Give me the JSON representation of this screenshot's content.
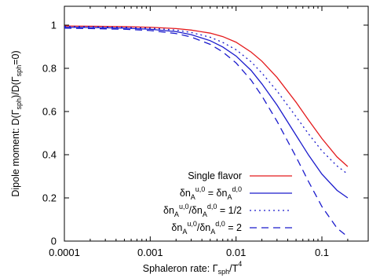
{
  "chart_data": {
    "type": "line",
    "xlabel": "Sphaleron rate: Γsph/T4",
    "ylabel": "Dipole moment: D(Γsph)/D(Γsph=0)",
    "xscale": "log",
    "xlim": [
      0.0001,
      0.2
    ],
    "ylim": [
      0,
      1.05
    ],
    "x_ticks": [
      0.0001,
      0.001,
      0.01,
      0.1
    ],
    "x_tick_labels": [
      "0.0001",
      "0.001",
      "0.01",
      "0.1"
    ],
    "y_ticks": [
      0,
      0.2,
      0.4,
      0.6,
      0.8,
      1
    ],
    "y_tick_labels": [
      "0",
      "0.2",
      "0.4",
      "0.6",
      "0.8",
      "1"
    ],
    "grid": false,
    "legend_position": "bottom-left",
    "series": [
      {
        "name": "Single flavor",
        "color": "#e41a1c",
        "dash": "solid",
        "x": [
          0.0001,
          0.0002,
          0.0005,
          0.001,
          0.002,
          0.003,
          0.005,
          0.007,
          0.01,
          0.015,
          0.02,
          0.03,
          0.05,
          0.07,
          0.1,
          0.15,
          0.2
        ],
        "y": [
          0.996,
          0.995,
          0.993,
          0.99,
          0.984,
          0.977,
          0.963,
          0.947,
          0.921,
          0.875,
          0.833,
          0.758,
          0.643,
          0.56,
          0.475,
          0.39,
          0.345
        ]
      },
      {
        "name": "δnAu,0 = δnAd,0",
        "color": "#1a1acc",
        "dash": "solid",
        "x": [
          0.0001,
          0.0002,
          0.0005,
          0.001,
          0.002,
          0.003,
          0.005,
          0.007,
          0.01,
          0.015,
          0.02,
          0.03,
          0.05,
          0.07,
          0.1,
          0.15,
          0.2
        ],
        "y": [
          0.99,
          0.989,
          0.986,
          0.981,
          0.97,
          0.956,
          0.928,
          0.899,
          0.857,
          0.79,
          0.728,
          0.63,
          0.49,
          0.398,
          0.31,
          0.235,
          0.2
        ]
      },
      {
        "name": "δnAu,0/δnAd,0 = 1/2",
        "color": "#1a1acc",
        "dash": "dotted",
        "x": [
          0.0001,
          0.0002,
          0.0005,
          0.001,
          0.002,
          0.003,
          0.005,
          0.007,
          0.01,
          0.015,
          0.02,
          0.03,
          0.05,
          0.07,
          0.1,
          0.15,
          0.2
        ],
        "y": [
          0.994,
          0.993,
          0.99,
          0.986,
          0.977,
          0.966,
          0.944,
          0.92,
          0.886,
          0.83,
          0.778,
          0.695,
          0.576,
          0.496,
          0.418,
          0.348,
          0.31
        ]
      },
      {
        "name": "δnAu,0/δnAd,0 = 2",
        "color": "#1a1acc",
        "dash": "dashed",
        "x": [
          0.0001,
          0.0002,
          0.0005,
          0.001,
          0.002,
          0.003,
          0.005,
          0.007,
          0.01,
          0.015,
          0.02,
          0.03,
          0.05,
          0.07,
          0.1,
          0.15,
          0.2
        ],
        "y": [
          0.986,
          0.984,
          0.981,
          0.975,
          0.961,
          0.945,
          0.911,
          0.876,
          0.825,
          0.745,
          0.672,
          0.555,
          0.39,
          0.275,
          0.16,
          0.06,
          0.02
        ]
      }
    ],
    "legend": [
      {
        "base": "Single flavor"
      },
      {
        "parts": [
          [
            "δn",
            ""
          ],
          [
            "A",
            "sub"
          ],
          [
            "u,0",
            "sup"
          ],
          [
            " = δn",
            ""
          ],
          [
            "A",
            "sub"
          ],
          [
            "d,0",
            "sup"
          ]
        ]
      },
      {
        "parts": [
          [
            "δn",
            ""
          ],
          [
            "A",
            "sub"
          ],
          [
            "u,0",
            "sup"
          ],
          [
            "/δn",
            ""
          ],
          [
            "A",
            "sub"
          ],
          [
            "d,0",
            "sup"
          ],
          [
            " = 1/2",
            ""
          ]
        ]
      },
      {
        "parts": [
          [
            "δn",
            ""
          ],
          [
            "A",
            "sub"
          ],
          [
            "u,0",
            "sup"
          ],
          [
            "/δn",
            ""
          ],
          [
            "A",
            "sub"
          ],
          [
            "d,0",
            "sup"
          ],
          [
            " = 2",
            ""
          ]
        ]
      }
    ]
  }
}
